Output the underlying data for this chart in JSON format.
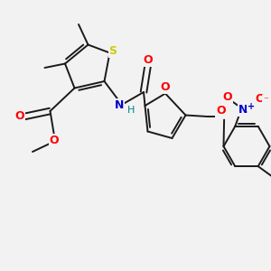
{
  "bg_color": "#f2f2f2",
  "bond_color": "#1a1a1a",
  "colors": {
    "S": "#cccc00",
    "O": "#ff0000",
    "N_blue": "#0000cc",
    "H": "#008080",
    "C": "#1a1a1a"
  },
  "figsize": [
    3.0,
    3.0
  ],
  "dpi": 100
}
